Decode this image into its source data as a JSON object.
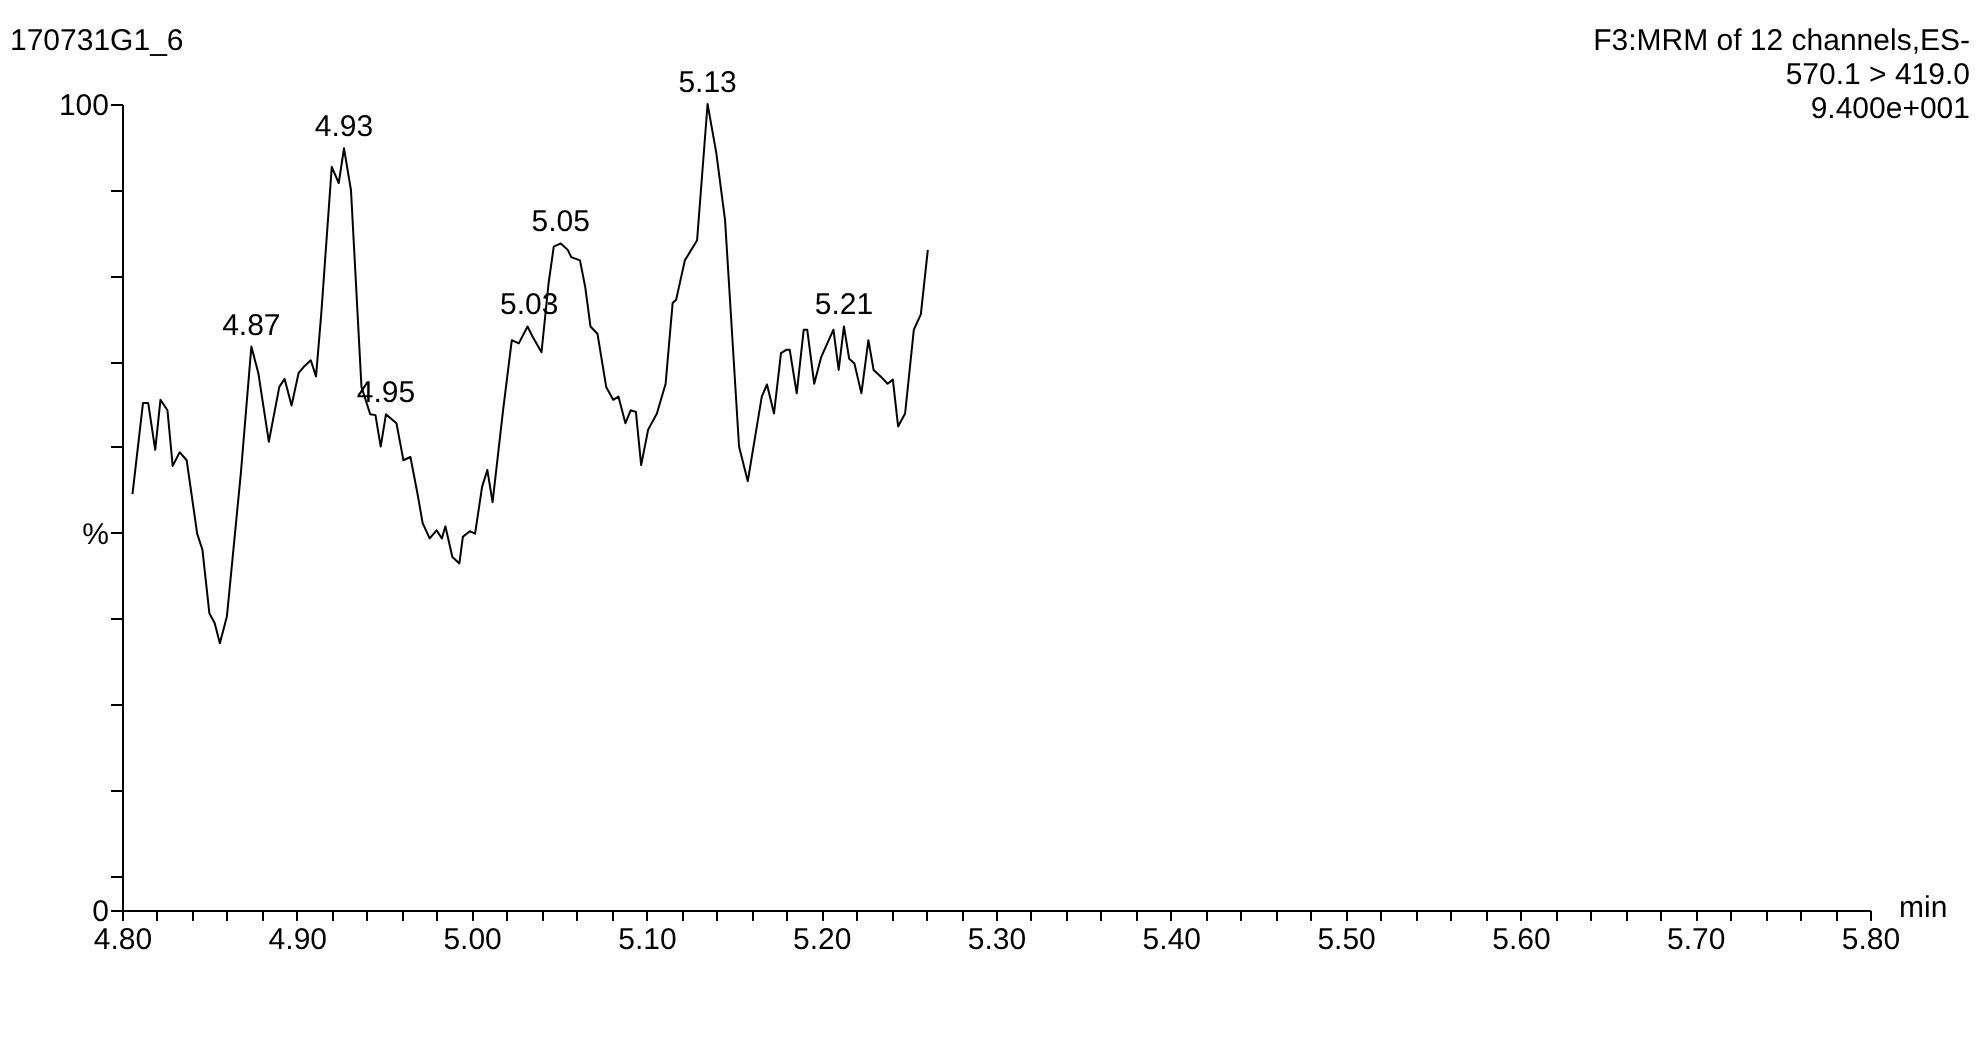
{
  "chart_data": {
    "type": "line",
    "title": "170731G1_6",
    "xlabel": "min",
    "annotations": [
      "F3:MRM of 12 channels,ES-",
      "570.1 > 419.0",
      "9.400e+001",
      {
        "text": "4.87",
        "x": 4.874,
        "y": 69.9
      },
      {
        "text": "4.93",
        "x": 4.927,
        "y": 94.5
      },
      {
        "text": "4.95",
        "x": 4.951,
        "y": 61.5
      },
      {
        "text": "5.03",
        "x": 5.033,
        "y": 72.5
      },
      {
        "text": "5.05",
        "x": 5.051,
        "y": 82.7
      },
      {
        "text": "5.13",
        "x": 5.135,
        "y": 100
      },
      {
        "text": "5.21",
        "x": 5.213,
        "y": 72.4
      }
    ],
    "x": [
      4.806,
      4.812,
      4.815,
      4.819,
      4.822,
      4.826,
      4.829,
      4.833,
      4.837,
      4.843,
      4.846,
      4.85,
      4.853,
      4.856,
      4.86,
      4.868,
      4.874,
      4.878,
      4.884,
      4.89,
      4.893,
      4.897,
      4.901,
      4.904,
      4.908,
      4.911,
      4.914,
      4.92,
      4.924,
      4.927,
      4.931,
      4.937,
      4.942,
      4.945,
      4.948,
      4.951,
      4.957,
      4.961,
      4.965,
      4.969,
      4.972,
      4.976,
      4.98,
      4.983,
      4.985,
      4.989,
      4.993,
      4.995,
      4.999,
      5.002,
      5.006,
      5.009,
      5.012,
      5.018,
      5.023,
      5.027,
      5.032,
      5.035,
      5.04,
      5.044,
      5.047,
      5.051,
      5.055,
      5.057,
      5.062,
      5.065,
      5.068,
      5.072,
      5.077,
      5.081,
      5.084,
      5.088,
      5.091,
      5.094,
      5.097,
      5.101,
      5.106,
      5.111,
      5.115,
      5.117,
      5.122,
      5.129,
      5.135,
      5.14,
      5.145,
      5.153,
      5.158,
      5.166,
      5.169,
      5.173,
      5.177,
      5.18,
      5.182,
      5.186,
      5.19,
      5.192,
      5.196,
      5.2,
      5.207,
      5.21,
      5.213,
      5.216,
      5.219,
      5.223,
      5.227,
      5.23,
      5.234,
      5.238,
      5.241,
      5.244,
      5.248,
      5.253,
      5.257,
      5.261
    ],
    "series": [
      {
        "color": "#000000",
        "values": [
          51.6,
          62.9,
          62.9,
          57.1,
          63.3,
          62,
          55.1,
          56.8,
          55.8,
          46.7,
          44.7,
          36.8,
          35.6,
          33.1,
          36.4,
          54.2,
          69.9,
          66.6,
          58.1,
          64.9,
          65.9,
          62.6,
          66.6,
          67.4,
          68.2,
          66.2,
          74,
          92.2,
          90.2,
          94.5,
          89.3,
          64.9,
          61.5,
          61.4,
          57.5,
          61.5,
          60.4,
          55.8,
          56.2,
          51.7,
          48,
          46.1,
          47.1,
          46.1,
          47.6,
          43.8,
          43,
          46.3,
          47,
          46.7,
          52.5,
          54.6,
          50.6,
          62,
          70.7,
          70.3,
          72.4,
          71.1,
          69.2,
          77.7,
          82.3,
          82.7,
          81.9,
          81,
          80.6,
          77.3,
          72.4,
          71.5,
          64.9,
          63.3,
          63.7,
          60.4,
          62,
          61.8,
          55.2,
          59.6,
          61.6,
          65.3,
          75.3,
          75.7,
          80.6,
          83.1,
          100,
          93.9,
          85.6,
          57.5,
          53.2,
          63.7,
          65.2,
          61.6,
          69.1,
          69.5,
          69.5,
          64.1,
          72,
          72,
          65.3,
          68.6,
          72,
          67,
          72.4,
          68.4,
          67.8,
          64.1,
          70.7,
          67,
          66.2,
          65.3,
          65.8,
          60,
          61.6,
          72,
          73.9,
          81.9
        ]
      }
    ],
    "xlim": [
      4.8,
      5.8
    ],
    "xticks": [
      {
        "value": 4.8,
        "label": "4.80"
      },
      {
        "value": 4.82,
        "label": null
      },
      {
        "value": 4.84,
        "label": null
      },
      {
        "value": 4.86,
        "label": null
      },
      {
        "value": 4.88,
        "label": null
      },
      {
        "value": 4.9,
        "label": "4.90"
      },
      {
        "value": 4.92,
        "label": null
      },
      {
        "value": 4.94,
        "label": null
      },
      {
        "value": 4.96,
        "label": null
      },
      {
        "value": 4.98,
        "label": null
      },
      {
        "value": 5.0,
        "label": "5.00"
      },
      {
        "value": 5.02,
        "label": null
      },
      {
        "value": 5.04,
        "label": null
      },
      {
        "value": 5.06,
        "label": null
      },
      {
        "value": 5.08,
        "label": null
      },
      {
        "value": 5.1,
        "label": "5.10"
      },
      {
        "value": 5.12,
        "label": null
      },
      {
        "value": 5.14,
        "label": null
      },
      {
        "value": 5.16,
        "label": null
      },
      {
        "value": 5.18,
        "label": null
      },
      {
        "value": 5.2,
        "label": "5.20"
      },
      {
        "value": 5.22,
        "label": null
      },
      {
        "value": 5.24,
        "label": null
      },
      {
        "value": 5.26,
        "label": null
      },
      {
        "value": 5.28,
        "label": null
      },
      {
        "value": 5.3,
        "label": "5.30"
      },
      {
        "value": 5.32,
        "label": null
      },
      {
        "value": 5.34,
        "label": null
      },
      {
        "value": 5.36,
        "label": null
      },
      {
        "value": 5.38,
        "label": null
      },
      {
        "value": 5.4,
        "label": "5.40"
      },
      {
        "value": 5.42,
        "label": null
      },
      {
        "value": 5.44,
        "label": null
      },
      {
        "value": 5.46,
        "label": null
      },
      {
        "value": 5.48,
        "label": null
      },
      {
        "value": 5.5,
        "label": "5.50"
      },
      {
        "value": 5.52,
        "label": null
      },
      {
        "value": 5.54,
        "label": null
      },
      {
        "value": 5.56,
        "label": null
      },
      {
        "value": 5.58,
        "label": null
      },
      {
        "value": 5.6,
        "label": "5.60"
      },
      {
        "value": 5.62,
        "label": null
      },
      {
        "value": 5.64,
        "label": null
      },
      {
        "value": 5.66,
        "label": null
      },
      {
        "value": 5.68,
        "label": null
      },
      {
        "value": 5.7,
        "label": "5.70"
      },
      {
        "value": 5.72,
        "label": null
      },
      {
        "value": 5.74,
        "label": null
      },
      {
        "value": 5.76,
        "label": null
      },
      {
        "value": 5.78,
        "label": null
      },
      {
        "value": 5.8,
        "label": "5.80"
      }
    ],
    "ylim": [
      0,
      100
    ],
    "yticks": [
      0,
      {
        "value": 4.26,
        "label": null
      },
      {
        "value": 14.89,
        "label": null
      },
      {
        "value": 25.53,
        "label": null
      },
      {
        "value": 36.17,
        "label": null
      },
      {
        "value": 46.81,
        "label": "%"
      },
      {
        "value": 57.45,
        "label": null
      },
      {
        "value": 68.09,
        "label": null
      },
      {
        "value": 78.72,
        "label": null
      },
      {
        "value": 89.36,
        "label": null
      },
      100
    ],
    "marker": "none",
    "line_style": "solid",
    "grid": false
  }
}
